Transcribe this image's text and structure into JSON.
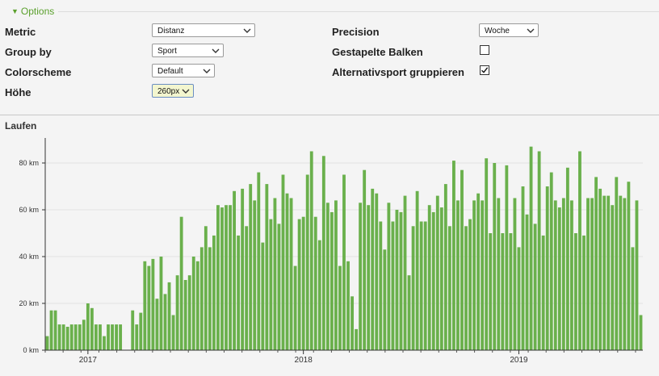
{
  "options": {
    "toggle_label": "Options"
  },
  "form": {
    "metric": {
      "label": "Metric",
      "value": "Distanz"
    },
    "group_by": {
      "label": "Group by",
      "value": "Sport"
    },
    "colorscheme": {
      "label": "Colorscheme",
      "value": "Default"
    },
    "hoehe": {
      "label": "Höhe",
      "value": "260px"
    },
    "precision": {
      "label": "Precision",
      "value": "Woche"
    },
    "gestapelte": {
      "label": "Gestapelte Balken",
      "checked": false
    },
    "alternativ": {
      "label": "Alternativsport gruppieren",
      "checked": true
    }
  },
  "icons": {
    "toggle": "caret-down-icon",
    "select": "chevron-down-icon",
    "check": "check-icon"
  },
  "colors": {
    "accent": "#5aa02c",
    "bar": "#6ab04c"
  },
  "chart_data": {
    "type": "bar",
    "title": "Laufen",
    "ylabel": "",
    "xlabel": "",
    "ylim": [
      0,
      90
    ],
    "y_ticks": [
      0,
      20,
      40,
      60,
      80
    ],
    "y_tick_labels": [
      "0 km",
      "20 km",
      "40 km",
      "60 km",
      "80 km"
    ],
    "x_labels": [
      {
        "label": "2017",
        "index": 10
      },
      {
        "label": "2018",
        "index": 63
      },
      {
        "label": "2019",
        "index": 116
      }
    ],
    "x_minor_tick_every": 4.4,
    "values": [
      6,
      17,
      17,
      11,
      11,
      10,
      11,
      11,
      11,
      13,
      20,
      18,
      11,
      11,
      6,
      11,
      11,
      11,
      11,
      0,
      0,
      17,
      11,
      16,
      38,
      36,
      39,
      22,
      40,
      24,
      29,
      15,
      32,
      57,
      30,
      32,
      40,
      38,
      44,
      53,
      44,
      49,
      62,
      61,
      62,
      62,
      68,
      49,
      69,
      53,
      71,
      64,
      76,
      46,
      71,
      56,
      65,
      54,
      75,
      67,
      65,
      36,
      56,
      57,
      75,
      85,
      57,
      47,
      83,
      63,
      59,
      64,
      36,
      75,
      38,
      23,
      9,
      63,
      77,
      62,
      69,
      67,
      55,
      43,
      63,
      55,
      60,
      59,
      66,
      32,
      53,
      68,
      55,
      55,
      62,
      59,
      66,
      61,
      71,
      53,
      81,
      64,
      77,
      53,
      56,
      64,
      67,
      64,
      82,
      50,
      80,
      65,
      50,
      79,
      50,
      65,
      44,
      70,
      58,
      87,
      54,
      85,
      49,
      70,
      76,
      64,
      61,
      65,
      78,
      64,
      50,
      85,
      49,
      65,
      65,
      74,
      69,
      66,
      66,
      62,
      74,
      66,
      65,
      72,
      44,
      64,
      15
    ]
  }
}
